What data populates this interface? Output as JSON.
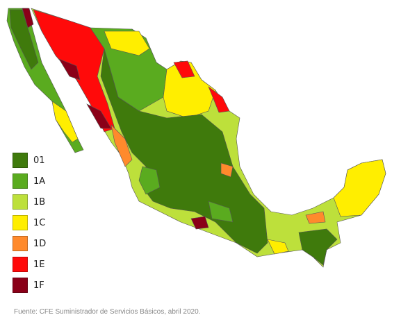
{
  "legend": [
    {
      "label": "01",
      "color": "#3f7a0c"
    },
    {
      "label": "1A",
      "color": "#5aab1f"
    },
    {
      "label": "1B",
      "color": "#bde03b"
    },
    {
      "label": "1C",
      "color": "#ffee00"
    },
    {
      "label": "1D",
      "color": "#ff8a2c"
    },
    {
      "label": "1E",
      "color": "#ff0a0a"
    },
    {
      "label": "1F",
      "color": "#8a0018"
    }
  ],
  "source": "Fuente: CFE Suministrador de Servicios Básicos, abril 2020."
}
